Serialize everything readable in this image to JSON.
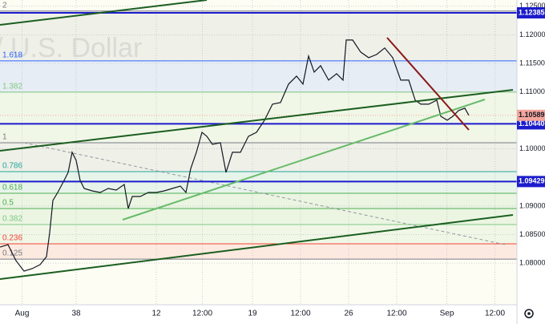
{
  "chart_data": {
    "type": "line",
    "watermark": "/ U.S. Dollar",
    "color": "#131722",
    "x": [
      0,
      4,
      8,
      12,
      16,
      20,
      23.2,
      24.8,
      26.4,
      28.8,
      32,
      34,
      36,
      38,
      40,
      42,
      46,
      50,
      54,
      58,
      62,
      64,
      66,
      70,
      74,
      78,
      82,
      86,
      90,
      92.8,
      95.2,
      98,
      100.8,
      103.2,
      106,
      110,
      112.8,
      116,
      120,
      124,
      128,
      132,
      136,
      140,
      144,
      148,
      151.2,
      154,
      156.8,
      160,
      164,
      168,
      171.2,
      172.8,
      176,
      180,
      184,
      188,
      192,
      196,
      200,
      204,
      207.2,
      210,
      214,
      218,
      220,
      223.2,
      226,
      228.8,
      232,
      234
    ],
    "values": [
      1.08281,
      1.08323,
      1.08042,
      1.07859,
      1.07902,
      1.07972,
      1.08113,
      1.08534,
      1.09097,
      1.09238,
      1.09448,
      1.09589,
      1.09941,
      1.098,
      1.09448,
      1.09308,
      1.09266,
      1.09238,
      1.09308,
      1.0928,
      1.09378,
      1.08956,
      1.09167,
      1.09167,
      1.09238,
      1.09238,
      1.09266,
      1.09308,
      1.0935,
      1.09238,
      1.09659,
      1.09941,
      1.10292,
      1.10222,
      1.10081,
      1.10109,
      1.09589,
      1.09941,
      1.09941,
      1.10222,
      1.10292,
      1.10503,
      1.10784,
      1.10813,
      1.11136,
      1.11277,
      1.11136,
      1.11628,
      1.11347,
      1.11459,
      1.11206,
      1.11319,
      1.11206,
      1.11909,
      1.11909,
      1.11698,
      1.116,
      1.11656,
      1.11769,
      1.116,
      1.11206,
      1.11206,
      1.10855,
      1.10784,
      1.10784,
      1.10855,
      1.10573,
      1.10503,
      1.10573,
      1.10672,
      1.10714,
      1.10589
    ],
    "xlim": [
      0,
      258
    ],
    "xticks": [
      {
        "value": 11,
        "label": "Aug"
      },
      38,
      {
        "value": 78,
        "label": "12"
      },
      {
        "value": 101,
        "label": "12:00"
      },
      {
        "value": 126,
        "label": "19"
      },
      {
        "value": 150,
        "label": "12:00"
      },
      {
        "value": 174,
        "label": "26"
      },
      {
        "value": 198,
        "label": "12:00"
      },
      {
        "value": 223,
        "label": "Sep"
      },
      {
        "value": 247,
        "label": "12:00"
      }
    ],
    "ylim": [
      1.0727,
      1.1261
    ],
    "yticks": [
      {
        "value": 1.125,
        "label": "1.12500"
      },
      {
        "value": 1.12,
        "label": "1.12000"
      },
      {
        "value": 1.115,
        "label": "1.11500"
      },
      {
        "value": 1.11,
        "label": "1.11000"
      },
      {
        "value": 1.1,
        "label": "1.10000"
      },
      {
        "value": 1.09,
        "label": "1.09000"
      },
      {
        "value": 1.085,
        "label": "1.08500"
      },
      {
        "value": 1.08,
        "label": "1.08000"
      }
    ],
    "grid": true,
    "fib_levels": [
      {
        "ratio": 2,
        "price": 1.12416,
        "color": "#787b86"
      },
      {
        "ratio": 1.618,
        "price": 1.11544,
        "color": "#2962ff"
      },
      {
        "ratio": 1.382,
        "price": 1.10995,
        "color": "#81c784"
      },
      {
        "ratio": 1,
        "price": 1.10109,
        "color": "#787b86"
      },
      {
        "ratio": 0.786,
        "price": 1.09603,
        "color": "#26a69a"
      },
      {
        "ratio": 0.618,
        "price": 1.09223,
        "color": "#4caf50"
      },
      {
        "ratio": 0.5,
        "price": 1.08956,
        "color": "#4caf50"
      },
      {
        "ratio": 0.382,
        "price": 1.08675,
        "color": "#81c784"
      },
      {
        "ratio": 0.236,
        "price": 1.08338,
        "color": "#f44336"
      },
      {
        "ratio": 0.125,
        "price": 1.0807,
        "color": "#787b86"
      }
    ],
    "levels": [
      1.12385,
      {
        "value": 1.1044,
        "label": "1.10440"
      },
      {
        "value": 1.09429,
        "label": "1.09429"
      }
    ],
    "level_color": "#1c1ccc",
    "last_price": 1.10589,
    "last_price_color": "#f4a59c"
  }
}
